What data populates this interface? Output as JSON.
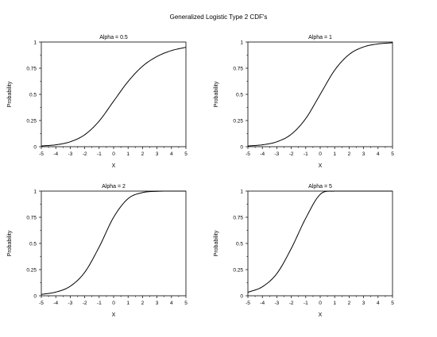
{
  "figure": {
    "title": "Generalized Logistic Type 2 CDF's"
  },
  "chart_data": [
    {
      "type": "line",
      "title": "Alpha = 0.5",
      "xlabel": "X",
      "ylabel": "Probability",
      "xlim": [
        -5,
        5
      ],
      "ylim": [
        0,
        1
      ],
      "x_ticks": [
        "-5",
        "-4",
        "-3",
        "-2",
        "-1",
        "0",
        "1",
        "2",
        "3",
        "4",
        "5"
      ],
      "y_ticks": [
        "0",
        "0.25",
        "0.5",
        "0.75",
        "1"
      ],
      "grid": false,
      "series": [
        {
          "color": "#000000",
          "x": [
            -5,
            -4,
            -3,
            -2,
            -1,
            0,
            1,
            2,
            3,
            4,
            5
          ],
          "y": [
            0.007,
            0.018,
            0.047,
            0.114,
            0.245,
            0.435,
            0.623,
            0.769,
            0.862,
            0.918,
            0.95
          ]
        }
      ]
    },
    {
      "type": "line",
      "title": "Alpha = 1",
      "xlabel": "X",
      "ylabel": "Probability",
      "xlim": [
        -5,
        5
      ],
      "ylim": [
        0,
        1
      ],
      "x_ticks": [
        "-5",
        "-4",
        "-3",
        "-2",
        "-1",
        "0",
        "1",
        "2",
        "3",
        "4",
        "5"
      ],
      "y_ticks": [
        "0",
        "0.25",
        "0.5",
        "0.75",
        "1"
      ],
      "grid": false,
      "series": [
        {
          "color": "#000000",
          "x": [
            -5,
            -4,
            -3,
            -2,
            -1,
            0,
            1,
            2,
            3,
            4,
            5
          ],
          "y": [
            0.007,
            0.018,
            0.047,
            0.119,
            0.269,
            0.5,
            0.731,
            0.881,
            0.953,
            0.982,
            0.993
          ]
        }
      ]
    },
    {
      "type": "line",
      "title": "Alpha = 2",
      "xlabel": "X",
      "ylabel": "Probability",
      "xlim": [
        -5,
        5
      ],
      "ylim": [
        0,
        1
      ],
      "x_ticks": [
        "-5",
        "-4",
        "-3",
        "-2",
        "-1",
        "0",
        "1",
        "2",
        "3",
        "4",
        "5"
      ],
      "y_ticks": [
        "0",
        "0.25",
        "0.5",
        "0.75",
        "1"
      ],
      "grid": false,
      "series": [
        {
          "color": "#000000",
          "x": [
            -5,
            -4,
            -3,
            -2,
            -1,
            0,
            1,
            2,
            3,
            4,
            5
          ],
          "y": [
            0.013,
            0.035,
            0.091,
            0.224,
            0.466,
            0.75,
            0.928,
            0.986,
            0.998,
            1.0,
            1.0
          ]
        }
      ]
    },
    {
      "type": "line",
      "title": "Alpha = 5",
      "xlabel": "X",
      "ylabel": "Probability",
      "xlim": [
        -5,
        5
      ],
      "ylim": [
        0,
        1
      ],
      "x_ticks": [
        "-5",
        "-4",
        "-3",
        "-2",
        "-1",
        "0",
        "1",
        "2",
        "3",
        "4",
        "5"
      ],
      "y_ticks": [
        "0",
        "0.25",
        "0.5",
        "0.75",
        "1"
      ],
      "grid": false,
      "series": [
        {
          "color": "#000000",
          "x": [
            -5,
            -4,
            -3,
            -2,
            -1,
            0,
            1,
            2,
            3,
            4,
            5
          ],
          "y": [
            0.033,
            0.086,
            0.212,
            0.452,
            0.741,
            0.969,
            1.0,
            1.0,
            1.0,
            1.0,
            1.0
          ]
        }
      ]
    }
  ]
}
